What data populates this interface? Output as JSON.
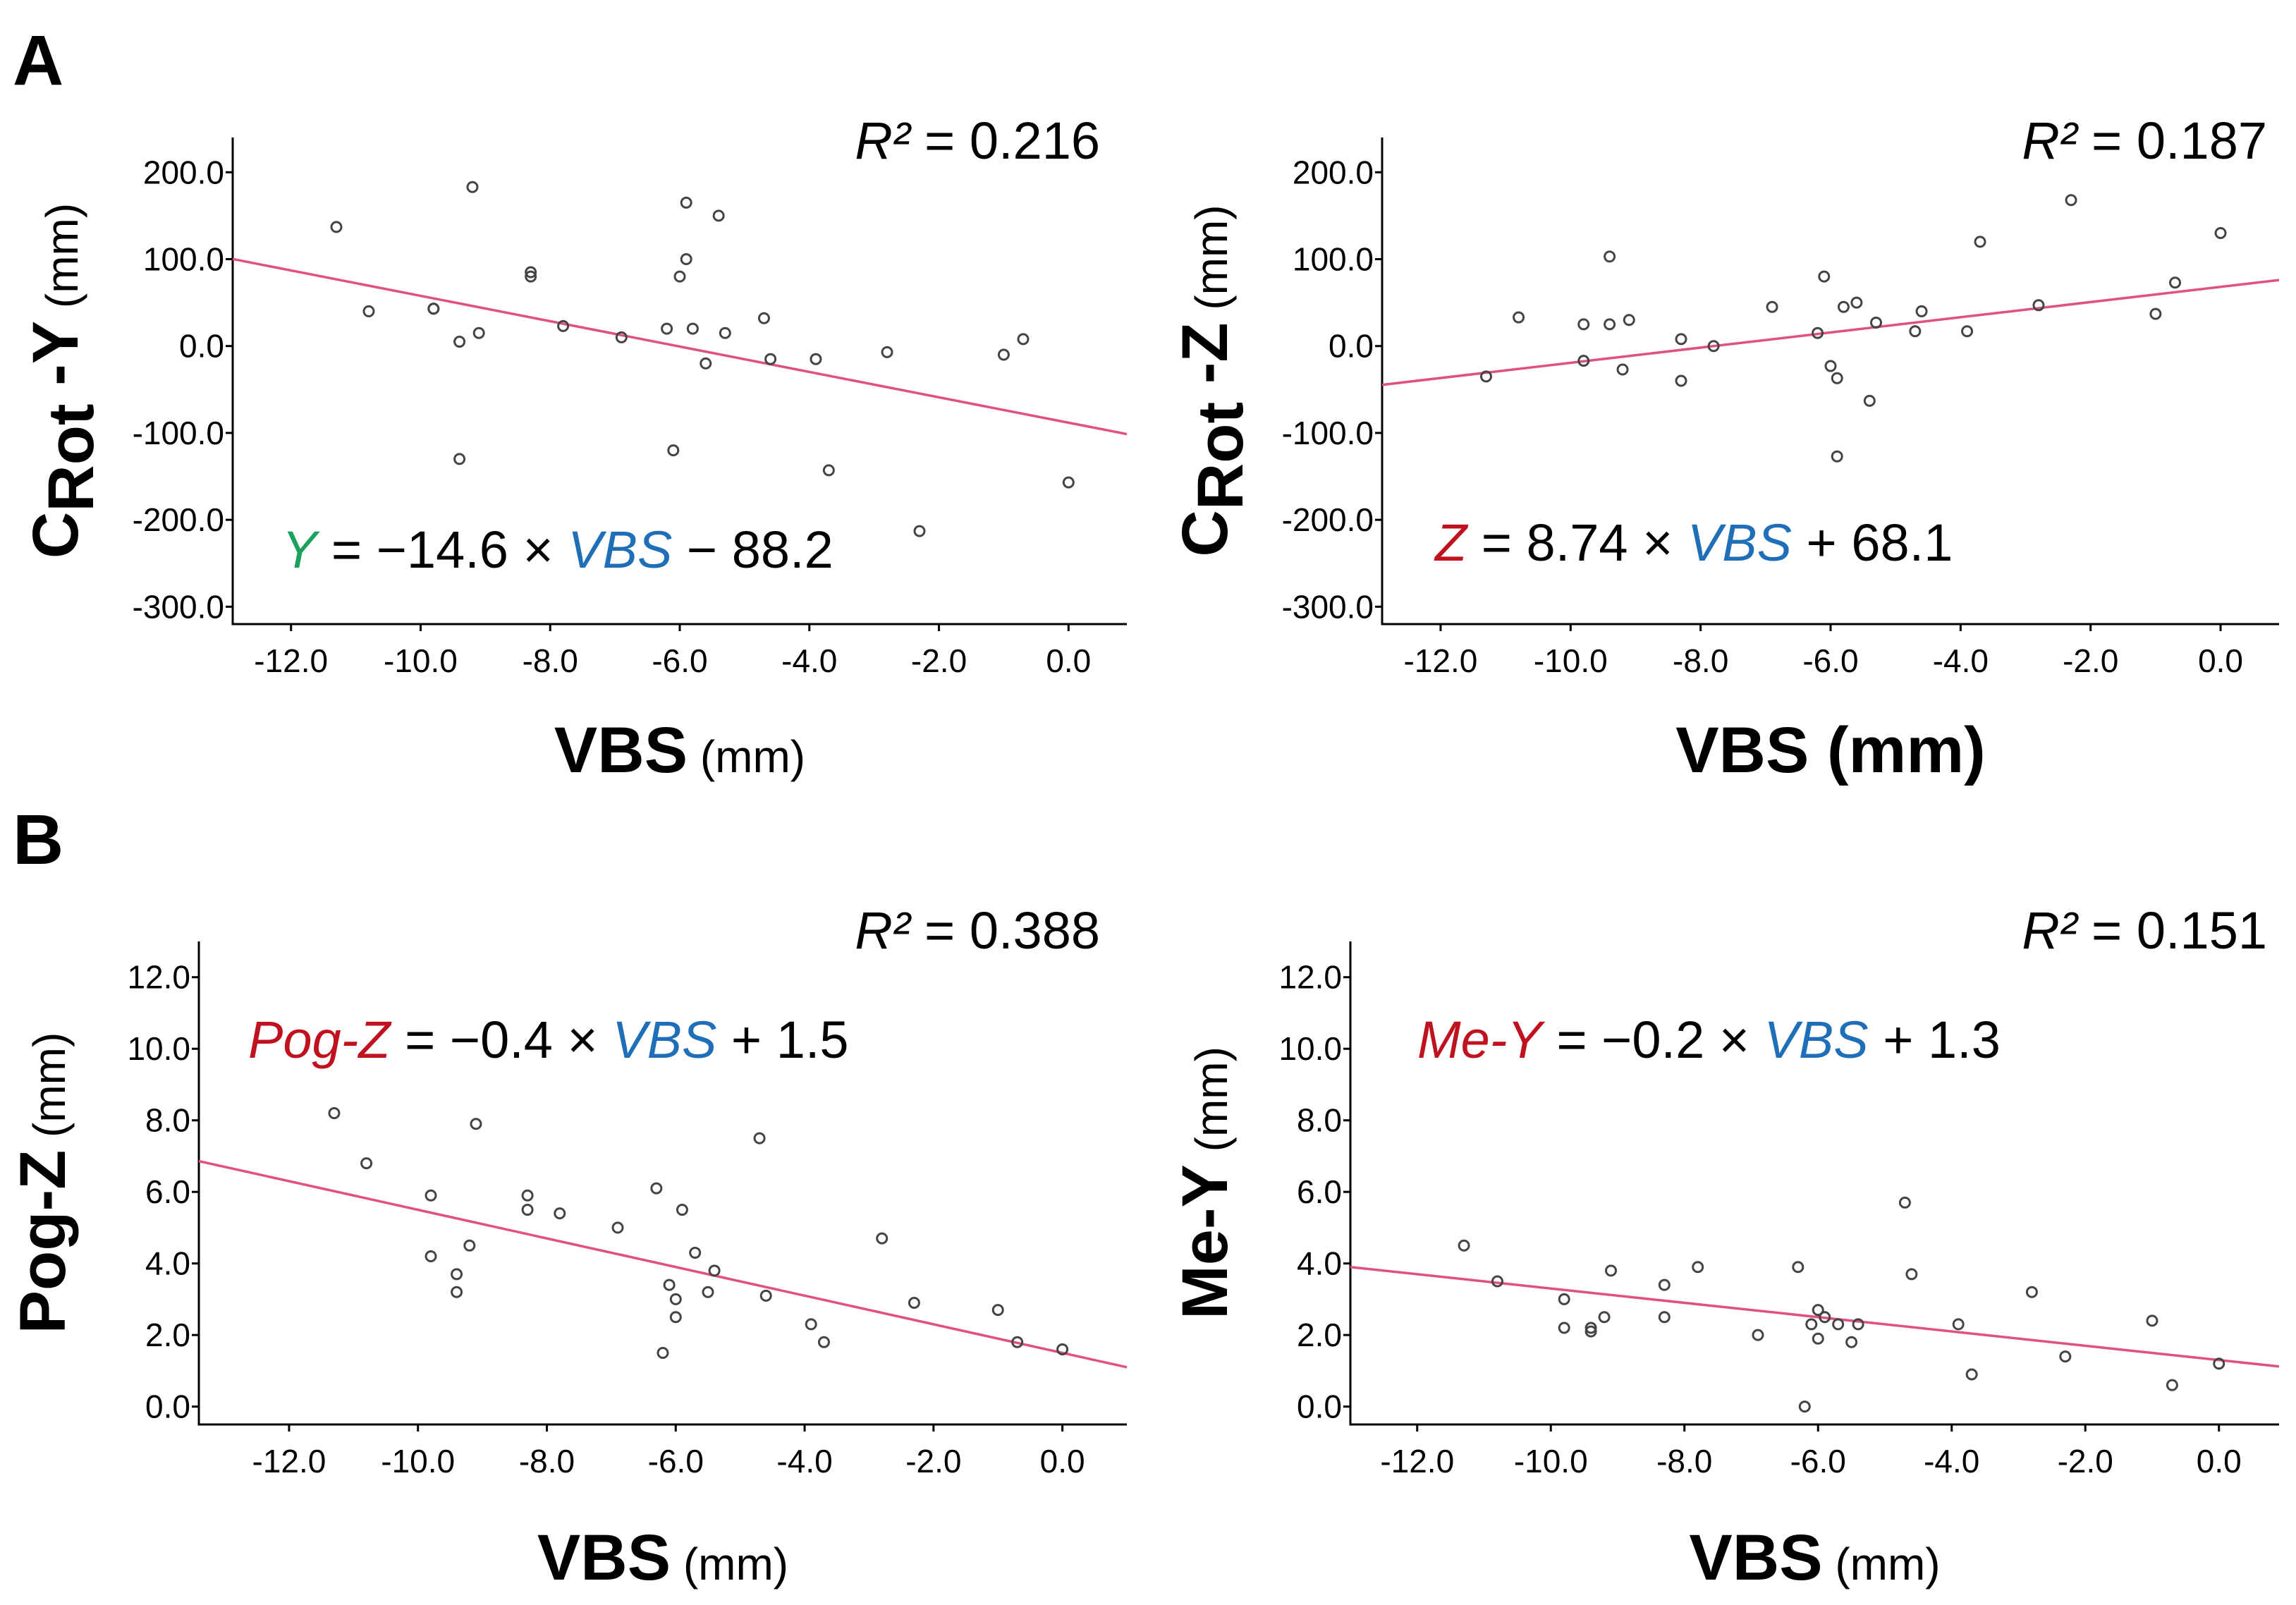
{
  "panel_labels": [
    "A",
    "B"
  ],
  "colors": {
    "green": "#1aa15c",
    "red": "#c0111f",
    "blue": "#1f6fb8",
    "fit_line": "#e05080",
    "point": "#444444"
  },
  "chart_data": [
    {
      "type": "scatter",
      "panel": "A",
      "title": "",
      "xlabel": "VBS",
      "xlabel_unit": "(mm)",
      "xlabel_unit_bold": false,
      "ylabel_main": "C",
      "ylabel_sub": "Rot",
      "ylabel_suffix": "-Y",
      "ylabel_unit": "(mm)",
      "xlim": [
        -12.9,
        0.9
      ],
      "ylim": [
        -320,
        240
      ],
      "xticks": [
        -12,
        -10,
        -8,
        -6,
        -4,
        -2,
        0
      ],
      "xtick_labels": [
        "-12.0",
        "-10.0",
        "-8.0",
        "-6.0",
        "-4.0",
        "-2.0",
        "0.0"
      ],
      "yticks": [
        200,
        100,
        0,
        -100,
        -200,
        -300
      ],
      "ytick_labels": [
        "200.0",
        "100.0",
        "0.0",
        "-100.0",
        "-200.0",
        "-300.0"
      ],
      "r2_label": "R²",
      "r2_value": "= 0.216",
      "equation": {
        "lhs": "Y",
        "lhs_color": "green",
        "mid": " = −14.6 × ",
        "var": "VBS",
        "rhs": " − 88.2"
      },
      "fit": {
        "slope": -14.6,
        "intercept": -88.2
      },
      "points": [
        [
          -11.3,
          137
        ],
        [
          -10.8,
          40
        ],
        [
          -9.8,
          43
        ],
        [
          -9.8,
          43
        ],
        [
          -9.4,
          5
        ],
        [
          -9.4,
          -130
        ],
        [
          -9.2,
          183
        ],
        [
          -9.1,
          15
        ],
        [
          -8.3,
          85
        ],
        [
          -8.3,
          80
        ],
        [
          -7.8,
          23
        ],
        [
          -6.9,
          10
        ],
        [
          -6.2,
          20
        ],
        [
          -6.1,
          -120
        ],
        [
          -6.0,
          80
        ],
        [
          -5.9,
          165
        ],
        [
          -5.9,
          100
        ],
        [
          -5.8,
          20
        ],
        [
          -5.6,
          -20
        ],
        [
          -5.4,
          150
        ],
        [
          -5.3,
          15
        ],
        [
          -4.7,
          32
        ],
        [
          -4.6,
          -15
        ],
        [
          -3.9,
          -15
        ],
        [
          -3.7,
          -143
        ],
        [
          -2.8,
          -7
        ],
        [
          -2.3,
          -213
        ],
        [
          -1.0,
          -10
        ],
        [
          -0.7,
          8
        ],
        [
          0.0,
          -157
        ]
      ]
    },
    {
      "type": "scatter",
      "panel": "A",
      "title": "",
      "xlabel": "VBS",
      "xlabel_unit": "(mm)",
      "xlabel_unit_bold": true,
      "ylabel_main": "C",
      "ylabel_sub": "Rot",
      "ylabel_suffix": "-Z",
      "ylabel_unit": "(mm)",
      "xlim": [
        -12.9,
        0.9
      ],
      "ylim": [
        -320,
        240
      ],
      "xticks": [
        -12,
        -10,
        -8,
        -6,
        -4,
        -2,
        0
      ],
      "xtick_labels": [
        "-12.0",
        "-10.0",
        "-8.0",
        "-6.0",
        "-4.0",
        "-2.0",
        "0.0"
      ],
      "yticks": [
        200,
        100,
        0,
        -100,
        -200,
        -300
      ],
      "ytick_labels": [
        "200.0",
        "100.0",
        "0.0",
        "-100.0",
        "-200.0",
        "-300.0"
      ],
      "r2_label": "R²",
      "r2_value": "= 0.187",
      "equation": {
        "lhs": "Z",
        "lhs_color": "red",
        "mid": " = 8.74 × ",
        "var": "VBS",
        "rhs": " + 68.1"
      },
      "fit": {
        "slope": 8.74,
        "intercept": 68.1
      },
      "points": [
        [
          -11.3,
          -35
        ],
        [
          -10.8,
          33
        ],
        [
          -9.8,
          25
        ],
        [
          -9.8,
          -17
        ],
        [
          -9.4,
          103
        ],
        [
          -9.4,
          25
        ],
        [
          -9.2,
          -27
        ],
        [
          -9.1,
          30
        ],
        [
          -8.3,
          -40
        ],
        [
          -8.3,
          8
        ],
        [
          -7.8,
          0
        ],
        [
          -6.9,
          45
        ],
        [
          -6.2,
          15
        ],
        [
          -6.1,
          80
        ],
        [
          -6.0,
          -23
        ],
        [
          -5.9,
          -37
        ],
        [
          -5.9,
          -127
        ],
        [
          -5.8,
          45
        ],
        [
          -5.6,
          50
        ],
        [
          -5.4,
          -63
        ],
        [
          -5.3,
          27
        ],
        [
          -4.7,
          17
        ],
        [
          -4.6,
          40
        ],
        [
          -3.9,
          17
        ],
        [
          -3.7,
          120
        ],
        [
          -2.8,
          47
        ],
        [
          -2.3,
          168
        ],
        [
          -1.0,
          37
        ],
        [
          -0.7,
          73
        ],
        [
          0.0,
          130
        ]
      ]
    },
    {
      "type": "scatter",
      "panel": "B",
      "title": "",
      "xlabel": "VBS",
      "xlabel_unit": "(mm)",
      "xlabel_unit_bold": false,
      "ylabel_main": "Pog-Z",
      "ylabel_sub": "",
      "ylabel_suffix": "",
      "ylabel_unit": "(mm)",
      "xlim": [
        -13.4,
        1.0
      ],
      "ylim": [
        -0.5,
        13
      ],
      "xticks": [
        -12,
        -10,
        -8,
        -6,
        -4,
        -2,
        0
      ],
      "xtick_labels": [
        "-12.0",
        "-10.0",
        "-8.0",
        "-6.0",
        "-4.0",
        "-2.0",
        "0.0"
      ],
      "yticks": [
        12,
        10,
        8,
        6,
        4,
        2,
        0
      ],
      "ytick_labels": [
        "12.0",
        "10.0",
        "8.0",
        "6.0",
        "4.0",
        "2.0",
        "0.0"
      ],
      "r2_label": "R²",
      "r2_value": "= 0.388",
      "equation": {
        "lhs": "Pog-Z",
        "lhs_color": "red",
        "mid": " = −0.4 × ",
        "var": "VBS",
        "rhs": " + 1.5"
      },
      "fit": {
        "slope": -0.4,
        "intercept": 1.5
      },
      "points": [
        [
          -11.3,
          8.2
        ],
        [
          -10.8,
          6.8
        ],
        [
          -9.8,
          5.9
        ],
        [
          -9.8,
          4.2
        ],
        [
          -9.4,
          3.7
        ],
        [
          -9.4,
          3.2
        ],
        [
          -9.2,
          4.5
        ],
        [
          -9.1,
          7.9
        ],
        [
          -8.3,
          5.9
        ],
        [
          -8.3,
          5.5
        ],
        [
          -7.8,
          5.4
        ],
        [
          -6.9,
          5.0
        ],
        [
          -6.3,
          6.1
        ],
        [
          -6.2,
          1.5
        ],
        [
          -6.1,
          3.4
        ],
        [
          -6.0,
          3.0
        ],
        [
          -6.0,
          2.5
        ],
        [
          -5.9,
          5.5
        ],
        [
          -5.7,
          4.3
        ],
        [
          -5.5,
          3.2
        ],
        [
          -5.4,
          3.8
        ],
        [
          -4.7,
          7.5
        ],
        [
          -4.6,
          3.1
        ],
        [
          -3.9,
          2.3
        ],
        [
          -3.7,
          1.8
        ],
        [
          -2.8,
          4.7
        ],
        [
          -2.3,
          2.9
        ],
        [
          -1.0,
          2.7
        ],
        [
          -0.7,
          1.8
        ],
        [
          0.0,
          1.6
        ]
      ]
    },
    {
      "type": "scatter",
      "panel": "B",
      "title": "",
      "xlabel": "VBS",
      "xlabel_unit": "(mm)",
      "xlabel_unit_bold": false,
      "ylabel_main": "Me-Y",
      "ylabel_sub": "",
      "ylabel_suffix": "",
      "ylabel_unit": "(mm)",
      "xlim": [
        -13.0,
        0.9
      ],
      "ylim": [
        -0.5,
        13
      ],
      "xticks": [
        -12,
        -10,
        -8,
        -6,
        -4,
        -2,
        0
      ],
      "xtick_labels": [
        "-12.0",
        "-10.0",
        "-8.0",
        "-6.0",
        "-4.0",
        "-2.0",
        "0.0"
      ],
      "yticks": [
        12,
        10,
        8,
        6,
        4,
        2,
        0
      ],
      "ytick_labels": [
        "12.0",
        "10.0",
        "8.0",
        "6.0",
        "4.0",
        "2.0",
        "0.0"
      ],
      "r2_label": "R²",
      "r2_value": "= 0.151",
      "equation": {
        "lhs": "Me-Y",
        "lhs_color": "red",
        "mid": " = −0.2 × ",
        "var": "VBS",
        "rhs": " + 1.3"
      },
      "fit": {
        "slope": -0.2,
        "intercept": 1.3
      },
      "points": [
        [
          -11.3,
          4.5
        ],
        [
          -10.8,
          3.5
        ],
        [
          -9.8,
          3.0
        ],
        [
          -9.8,
          2.2
        ],
        [
          -9.4,
          2.2
        ],
        [
          -9.4,
          2.1
        ],
        [
          -9.2,
          2.5
        ],
        [
          -9.1,
          3.8
        ],
        [
          -8.3,
          3.4
        ],
        [
          -8.3,
          2.5
        ],
        [
          -7.8,
          3.9
        ],
        [
          -6.9,
          2.0
        ],
        [
          -6.3,
          3.9
        ],
        [
          -6.2,
          0.0
        ],
        [
          -6.1,
          2.3
        ],
        [
          -6.0,
          2.7
        ],
        [
          -6.0,
          1.9
        ],
        [
          -5.9,
          2.5
        ],
        [
          -5.7,
          2.3
        ],
        [
          -5.5,
          1.8
        ],
        [
          -5.4,
          2.3
        ],
        [
          -4.7,
          5.7
        ],
        [
          -4.6,
          3.7
        ],
        [
          -3.9,
          2.3
        ],
        [
          -3.7,
          0.9
        ],
        [
          -2.8,
          3.2
        ],
        [
          -2.3,
          1.4
        ],
        [
          -1.0,
          2.4
        ],
        [
          -0.7,
          0.6
        ],
        [
          0.0,
          1.2
        ]
      ]
    }
  ]
}
